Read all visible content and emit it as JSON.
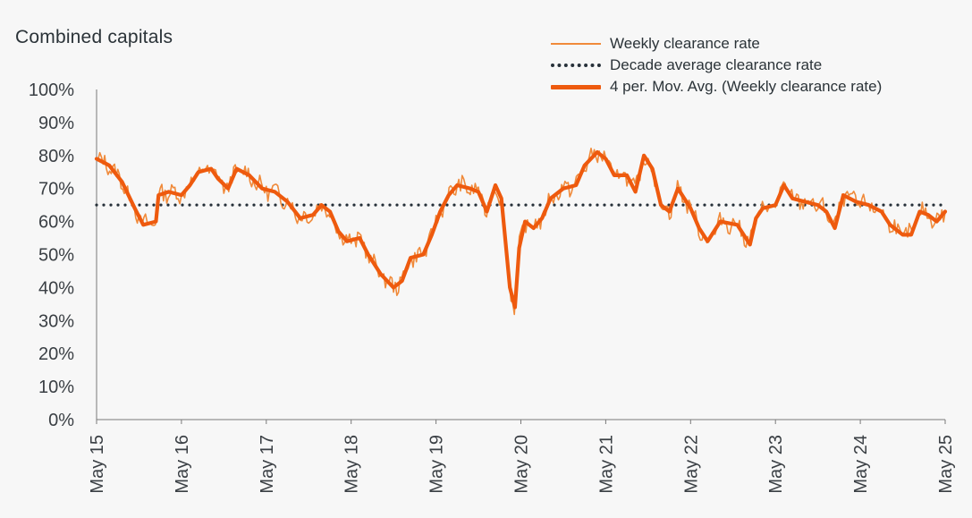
{
  "chart_data": {
    "type": "line",
    "title": "Combined capitals",
    "xlabel": "",
    "ylabel": "",
    "ylim": [
      0,
      100
    ],
    "xlim": [
      2015.35,
      2025.35
    ],
    "y_ticks": [
      "0%",
      "10%",
      "20%",
      "30%",
      "40%",
      "50%",
      "60%",
      "70%",
      "80%",
      "90%",
      "100%"
    ],
    "y_tick_values": [
      0,
      10,
      20,
      30,
      40,
      50,
      60,
      70,
      80,
      90,
      100
    ],
    "x_ticks": [
      "May 15",
      "May 16",
      "May 17",
      "May 18",
      "May 19",
      "May 20",
      "May 21",
      "May 22",
      "May 23",
      "May 24",
      "May 25"
    ],
    "x_tick_values": [
      2015.35,
      2016.35,
      2017.35,
      2018.35,
      2019.35,
      2020.35,
      2021.35,
      2022.35,
      2023.35,
      2024.35,
      2025.35
    ],
    "decade_average": 65,
    "trend_points": [
      [
        2015.35,
        79
      ],
      [
        2015.5,
        77
      ],
      [
        2015.65,
        72
      ],
      [
        2015.8,
        64
      ],
      [
        2015.9,
        59
      ],
      [
        2016.05,
        60
      ],
      [
        2016.08,
        68
      ],
      [
        2016.2,
        69
      ],
      [
        2016.35,
        68
      ],
      [
        2016.45,
        71
      ],
      [
        2016.55,
        75
      ],
      [
        2016.7,
        76
      ],
      [
        2016.78,
        73
      ],
      [
        2016.9,
        70
      ],
      [
        2017.0,
        76
      ],
      [
        2017.15,
        74
      ],
      [
        2017.3,
        70
      ],
      [
        2017.45,
        69
      ],
      [
        2017.6,
        66
      ],
      [
        2017.75,
        61
      ],
      [
        2017.9,
        62
      ],
      [
        2018.0,
        65
      ],
      [
        2018.1,
        63
      ],
      [
        2018.2,
        57
      ],
      [
        2018.3,
        54
      ],
      [
        2018.45,
        55
      ],
      [
        2018.55,
        50
      ],
      [
        2018.7,
        44
      ],
      [
        2018.85,
        40
      ],
      [
        2018.95,
        42
      ],
      [
        2019.05,
        49
      ],
      [
        2019.2,
        50
      ],
      [
        2019.3,
        56
      ],
      [
        2019.4,
        63
      ],
      [
        2019.5,
        68
      ],
      [
        2019.6,
        71
      ],
      [
        2019.75,
        70
      ],
      [
        2019.85,
        69
      ],
      [
        2019.95,
        63
      ],
      [
        2020.05,
        71
      ],
      [
        2020.12,
        67
      ],
      [
        2020.22,
        40
      ],
      [
        2020.28,
        34
      ],
      [
        2020.33,
        52
      ],
      [
        2020.4,
        60
      ],
      [
        2020.5,
        58
      ],
      [
        2020.6,
        61
      ],
      [
        2020.7,
        67
      ],
      [
        2020.85,
        70
      ],
      [
        2021.0,
        71
      ],
      [
        2021.1,
        77
      ],
      [
        2021.25,
        81
      ],
      [
        2021.35,
        79
      ],
      [
        2021.45,
        74
      ],
      [
        2021.6,
        74
      ],
      [
        2021.7,
        69
      ],
      [
        2021.8,
        80
      ],
      [
        2021.9,
        76
      ],
      [
        2022.0,
        65
      ],
      [
        2022.1,
        63
      ],
      [
        2022.2,
        70
      ],
      [
        2022.35,
        64
      ],
      [
        2022.45,
        58
      ],
      [
        2022.55,
        54
      ],
      [
        2022.7,
        60
      ],
      [
        2022.9,
        59
      ],
      [
        2023.05,
        53
      ],
      [
        2023.12,
        61
      ],
      [
        2023.2,
        64
      ],
      [
        2023.35,
        65
      ],
      [
        2023.45,
        71
      ],
      [
        2023.55,
        67
      ],
      [
        2023.7,
        66
      ],
      [
        2023.85,
        65
      ],
      [
        2023.95,
        63
      ],
      [
        2024.05,
        58
      ],
      [
        2024.15,
        68
      ],
      [
        2024.3,
        66
      ],
      [
        2024.45,
        65
      ],
      [
        2024.6,
        63
      ],
      [
        2024.7,
        59
      ],
      [
        2024.85,
        56
      ],
      [
        2024.95,
        56
      ],
      [
        2025.05,
        63
      ],
      [
        2025.15,
        62
      ],
      [
        2025.25,
        60
      ],
      [
        2025.35,
        63
      ]
    ],
    "series": [
      {
        "name": "Weekly clearance rate",
        "style": "thin",
        "color": "#f08a3a"
      },
      {
        "name": "Decade average clearance rate",
        "style": "dotted",
        "color": "#27313a"
      },
      {
        "name": "4 per. Mov. Avg. (Weekly clearance rate)",
        "style": "thick",
        "color": "#ee5a0e"
      }
    ]
  }
}
